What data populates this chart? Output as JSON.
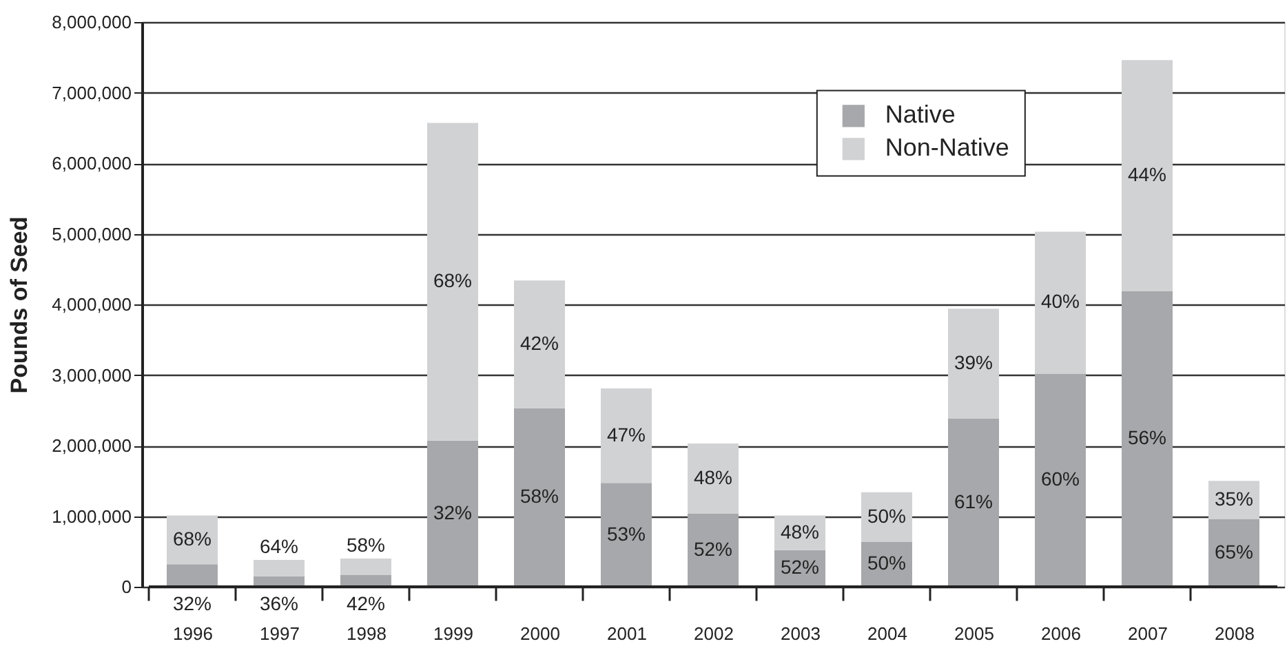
{
  "chart_data": {
    "type": "bar",
    "stacked": true,
    "ylabel": "Pounds of Seed",
    "categories": [
      "1996",
      "1997",
      "1998",
      "1999",
      "2000",
      "2001",
      "2002",
      "2003",
      "2004",
      "2005",
      "2006",
      "2007",
      "2008"
    ],
    "series": [
      {
        "name": "Native",
        "color": "#a7a8ab",
        "values": [
          320000,
          150000,
          170000,
          2070000,
          2530000,
          1470000,
          1040000,
          520000,
          640000,
          2380000,
          3020000,
          4190000,
          960000
        ]
      },
      {
        "name": "Non-Native",
        "color": "#d1d2d4",
        "values": [
          690000,
          230000,
          230000,
          4500000,
          1810000,
          1340000,
          990000,
          490000,
          700000,
          1560000,
          2010000,
          3270000,
          540000
        ]
      }
    ],
    "annotations": [
      "32%",
      "68%",
      "36%",
      "64%",
      "42%",
      "58%",
      "32%",
      "68%",
      "58%",
      "42%",
      "53%",
      "47%",
      "52%",
      "48%",
      "52%",
      "48%",
      "50%",
      "50%",
      "61%",
      "39%",
      "60%",
      "40%",
      "56%",
      "44%",
      "65%",
      "35%"
    ],
    "ylim": [
      0,
      8000000
    ],
    "yticks": [
      0,
      {
        "value": 1000000,
        "label": "1,000,000"
      },
      {
        "value": 2000000,
        "label": "2,000,000"
      },
      {
        "value": 3000000,
        "label": "3,000,000"
      },
      {
        "value": 4000000,
        "label": "4,000,000"
      },
      {
        "value": 5000000,
        "label": "5,000,000"
      },
      {
        "value": 6000000,
        "label": "6,000,000"
      },
      {
        "value": 7000000,
        "label": "7,000,000"
      },
      {
        "value": 8000000,
        "label": "8,000,000"
      }
    ],
    "grid": "y",
    "legend": "top right"
  }
}
